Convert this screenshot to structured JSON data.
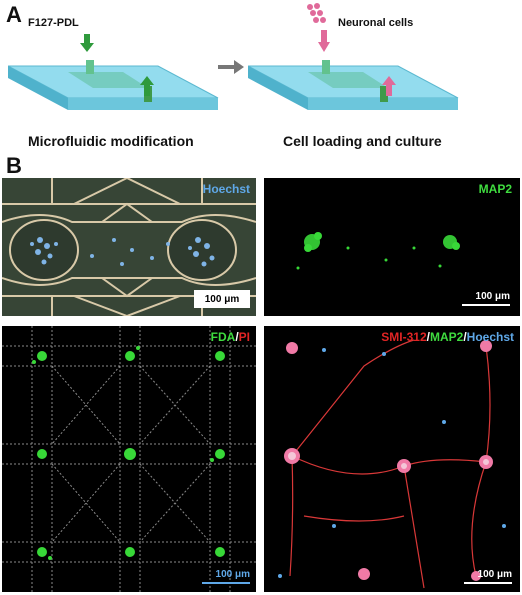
{
  "panel_a": {
    "letter": "A",
    "left_label": "F127-PDL",
    "right_label": "Neuronal cells",
    "left_caption": "Microfluidic modification",
    "right_caption": "Cell loading and culture"
  },
  "panel_b": {
    "letter": "B",
    "images": [
      {
        "stain": [
          {
            "text": "Hoechst",
            "color": "#5fa8e8"
          }
        ],
        "scale_bar": "100 μm"
      },
      {
        "stain": [
          {
            "text": "MAP2",
            "color": "#3fdc3f"
          }
        ],
        "scale_bar": "100 μm"
      },
      {
        "stain": [
          {
            "text": "FDA",
            "color": "#3fdc3f"
          },
          {
            "text": "/",
            "color": "#ffffff"
          },
          {
            "text": "PI",
            "color": "#e02424"
          }
        ],
        "scale_bar": "100 μm"
      },
      {
        "stain": [
          {
            "text": "SMI-312",
            "color": "#e02424"
          },
          {
            "text": "/",
            "color": "#ffffff"
          },
          {
            "text": "MAP2",
            "color": "#3fdc3f"
          },
          {
            "text": "/",
            "color": "#ffffff"
          },
          {
            "text": "Hoechst",
            "color": "#5fa8e8"
          }
        ],
        "scale_bar": "100 μm"
      }
    ]
  },
  "colors": {
    "chip": "#7fd3e8",
    "chip_side": "#3fa8c4",
    "accent_green": "#2f9a3c",
    "cell_pink": "#e06a9a"
  }
}
